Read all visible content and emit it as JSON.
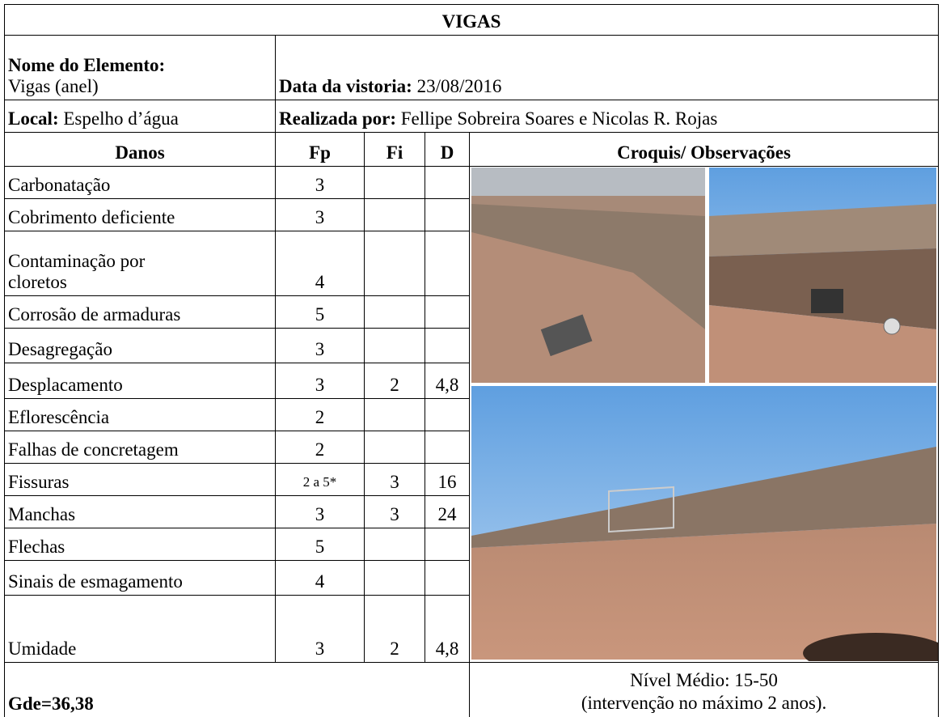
{
  "title": "VIGAS",
  "element": {
    "label": "Nome do Elemento:",
    "value": "Vigas (anel)"
  },
  "inspection_date": {
    "label": "Data da vistoria:",
    "value": "23/08/2016"
  },
  "location": {
    "label": "Local:",
    "value": "Espelho d’água"
  },
  "performed_by": {
    "label": "Realizada por:",
    "value": "Fellipe Sobreira Soares e Nicolas R. Rojas"
  },
  "table": {
    "columns": [
      "Danos",
      "Fp",
      "Fi",
      "D",
      "Croquis/ Observações"
    ],
    "rows": [
      {
        "damage": "Carbonatação",
        "fp": "3"
      },
      {
        "damage": "Cobrimento deficiente",
        "fp": "3"
      },
      {
        "damage": "Contaminação por cloretos",
        "fp": "4"
      },
      {
        "damage": "Corrosão de armaduras",
        "fp": "5"
      },
      {
        "damage": "Desagregação",
        "fp": "3"
      },
      {
        "damage": "Desplacamento",
        "fp": "3",
        "fi": "2",
        "d": "4,8"
      },
      {
        "damage": "Eflorescência",
        "fp": "2"
      },
      {
        "damage": "Falhas de concretagem",
        "fp": "2"
      },
      {
        "damage": "Fissuras",
        "fp": "2 a 5*",
        "fi": "3",
        "d": "16"
      },
      {
        "damage": "Manchas",
        "fp": "3",
        "fi": "3",
        "d": "24"
      },
      {
        "damage": "Flechas",
        "fp": "5"
      },
      {
        "damage": "Sinais de esmagamento",
        "fp": "4"
      },
      {
        "damage": "Umidade",
        "fp": "3",
        "fi": "2",
        "d": "4,8"
      }
    ]
  },
  "footer": {
    "gde": "Gde=36,38",
    "level": "Nível Médio: 15-50",
    "note": "(intervenção no máximo 2 anos)."
  }
}
